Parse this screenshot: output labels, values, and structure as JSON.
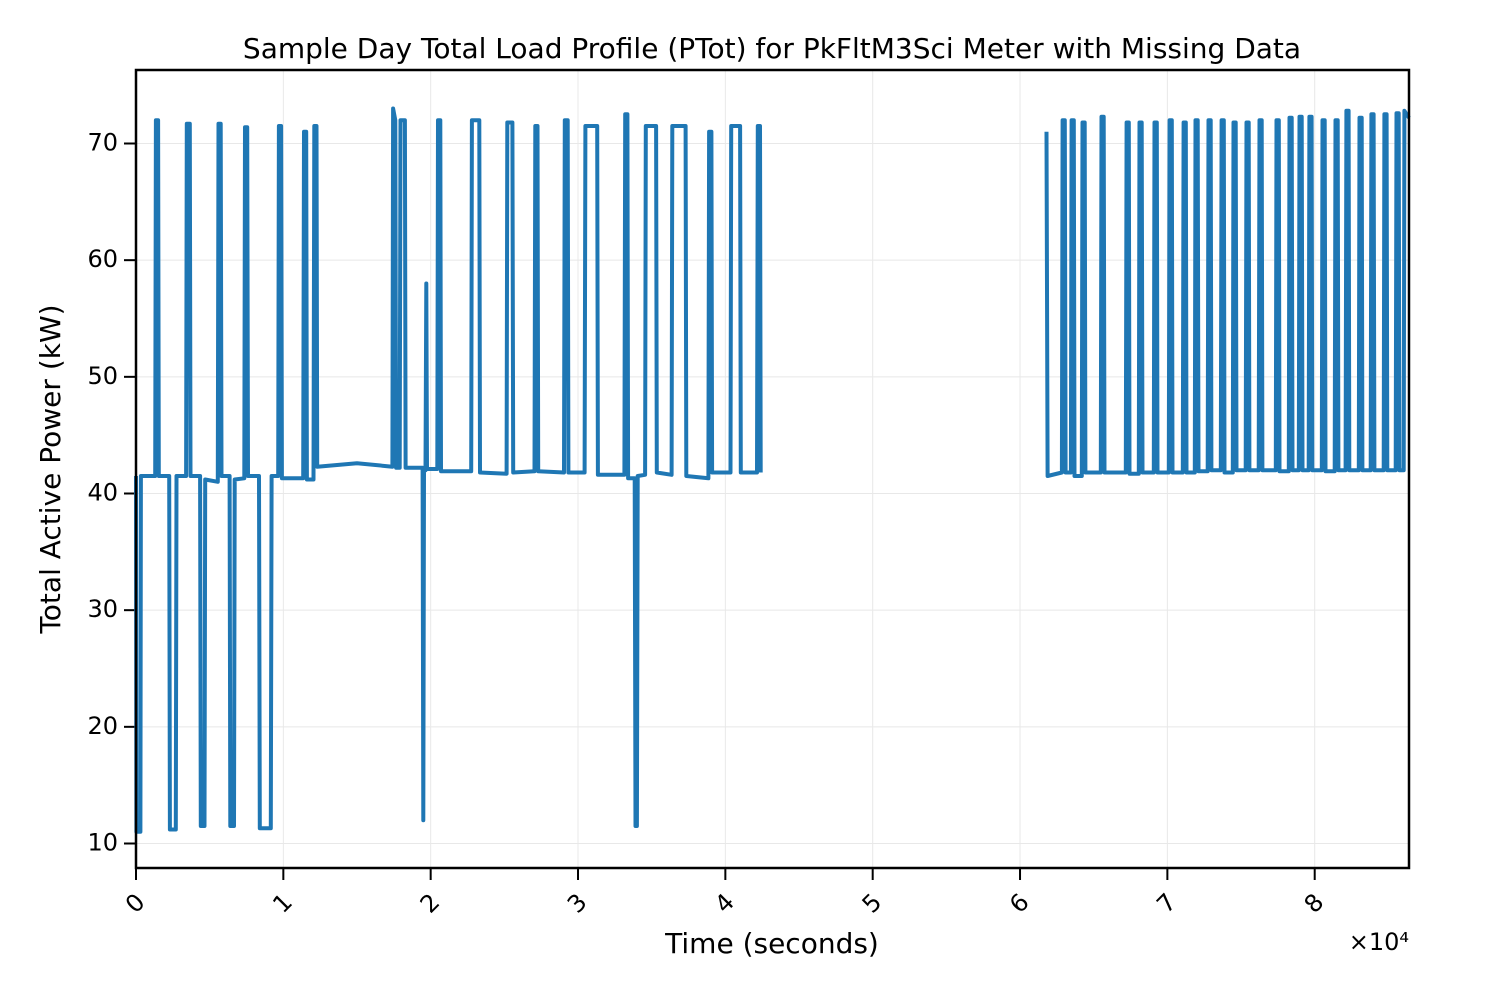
{
  "chart_data": {
    "type": "line",
    "title": "Sample Day Total Load Profile (PTot) for PkFltM3Sci Meter with Missing Data",
    "x_label": "Time (seconds)",
    "y_label": "Total Active Power (kW)",
    "x_offset_label": "×10⁴",
    "xlim": [
      0,
      86400
    ],
    "ylim": [
      7.9,
      76.3
    ],
    "xticks": [
      {
        "value": 0,
        "label": "0"
      },
      {
        "value": 10000,
        "label": "1"
      },
      {
        "value": 20000,
        "label": "2"
      },
      {
        "value": 30000,
        "label": "3"
      },
      {
        "value": 40000,
        "label": "4"
      },
      {
        "value": 50000,
        "label": "5"
      },
      {
        "value": 60000,
        "label": "6"
      },
      {
        "value": 70000,
        "label": "7"
      },
      {
        "value": 80000,
        "label": "8"
      }
    ],
    "yticks": [
      10,
      20,
      30,
      40,
      50,
      60,
      70
    ],
    "grid": true,
    "series": [
      {
        "name": "PTot",
        "color": "#1f77b4",
        "x": [
          0,
          30,
          300,
          330,
          1300,
          1350,
          1500,
          1550,
          2250,
          2300,
          2700,
          2750,
          3400,
          3450,
          3650,
          3700,
          4350,
          4400,
          4650,
          4700,
          5550,
          5600,
          5750,
          5800,
          6350,
          6400,
          6650,
          6700,
          7350,
          7400,
          7550,
          7600,
          8350,
          8400,
          9150,
          9200,
          9650,
          9700,
          9850,
          9900,
          11350,
          11400,
          11550,
          11600,
          12050,
          12100,
          12250,
          12300,
          15000,
          17400,
          17450,
          17600,
          17650,
          17900,
          17950,
          18250,
          18300,
          19450,
          19500,
          19550,
          19650,
          19700,
          19750,
          20450,
          20500,
          20650,
          20700,
          22750,
          22800,
          23300,
          23350,
          25150,
          25200,
          25550,
          25600,
          27050,
          27100,
          27250,
          27300,
          29050,
          29100,
          29300,
          29350,
          30450,
          30500,
          31300,
          31350,
          33150,
          33200,
          33350,
          33400,
          33850,
          33900,
          34000,
          34050,
          34550,
          34600,
          35300,
          35350,
          36350,
          36400,
          37300,
          37350,
          38850,
          38900,
          39050,
          39100,
          40350,
          40400,
          41000,
          41050,
          42150,
          42200,
          42350,
          42400,
          52000,
          61800,
          61870,
          62840,
          62890,
          63040,
          63090,
          63450,
          63500,
          63650,
          63700,
          64190,
          64240,
          64390,
          64440,
          65480,
          65530,
          65680,
          65730,
          67180,
          67230,
          67380,
          67430,
          68060,
          68110,
          68260,
          68310,
          69080,
          69130,
          69280,
          69330,
          70100,
          70150,
          70300,
          70350,
          71050,
          71100,
          71250,
          71300,
          71860,
          71910,
          72060,
          72110,
          72740,
          72790,
          72940,
          72990,
          73630,
          73680,
          73830,
          73880,
          74440,
          74490,
          74640,
          74690,
          75320,
          75370,
          75520,
          75570,
          76200,
          76250,
          76400,
          76450,
          77360,
          77410,
          77560,
          77610,
          78240,
          78290,
          78440,
          78490,
          78920,
          78970,
          79120,
          79170,
          79590,
          79640,
          79790,
          79840,
          80480,
          80530,
          80680,
          80730,
          81360,
          81410,
          81560,
          81610,
          82100,
          82150,
          82300,
          82350,
          82990,
          83040,
          83190,
          83240,
          83800,
          83850,
          84000,
          84050,
          84680,
          84730,
          84880,
          84930,
          85500,
          85550,
          85700,
          85750,
          86040,
          86090,
          86400
        ],
        "values": [
          41.5,
          11,
          11,
          41.5,
          41.5,
          72,
          72,
          41.5,
          41.5,
          11.2,
          11.2,
          41.5,
          41.5,
          71.7,
          71.7,
          41.5,
          41.5,
          11.5,
          11.5,
          41.2,
          41,
          71.7,
          71.7,
          41.5,
          41.5,
          11.5,
          11.5,
          41.2,
          41.3,
          71.4,
          71.4,
          41.5,
          41.5,
          11.3,
          11.3,
          41.5,
          41.5,
          71.5,
          71.5,
          41.3,
          41.3,
          71,
          71,
          41.2,
          41.2,
          71.5,
          71.5,
          42.3,
          42.6,
          42.3,
          73,
          72,
          42.2,
          42.2,
          72,
          72,
          42.2,
          42.2,
          12,
          42,
          42,
          58,
          42.1,
          42.1,
          72,
          72,
          41.9,
          41.9,
          72,
          72,
          41.8,
          41.7,
          71.8,
          71.8,
          41.8,
          41.9,
          71.5,
          71.5,
          41.9,
          41.8,
          72,
          72,
          41.8,
          41.8,
          71.5,
          71.5,
          41.6,
          41.6,
          72.5,
          72.5,
          41.3,
          41.3,
          11.5,
          11.5,
          41.5,
          41.6,
          71.5,
          71.5,
          41.8,
          41.6,
          71.5,
          71.5,
          41.5,
          41.3,
          71,
          71,
          41.8,
          41.8,
          71.5,
          71.5,
          41.8,
          41.8,
          71.5,
          71.5,
          41.8,
          null,
          71,
          41.5,
          41.8,
          72,
          72,
          41.8,
          41.8,
          72,
          72,
          41.5,
          41.5,
          71.8,
          71.8,
          41.8,
          41.8,
          72.3,
          72.3,
          41.8,
          41.8,
          71.8,
          71.8,
          41.7,
          41.7,
          71.8,
          71.8,
          41.8,
          41.8,
          71.8,
          71.8,
          41.8,
          41.8,
          72,
          72,
          41.8,
          41.8,
          71.8,
          71.8,
          41.8,
          41.8,
          72,
          72,
          41.9,
          41.9,
          72,
          72,
          42,
          42,
          72,
          72,
          41.8,
          41.8,
          71.8,
          71.8,
          42,
          42,
          71.8,
          71.8,
          42,
          42,
          72,
          72,
          42,
          42,
          72,
          72,
          41.9,
          41.9,
          72.2,
          72.2,
          42,
          42,
          72.3,
          72.3,
          42,
          42,
          72.3,
          72.3,
          42,
          42,
          72,
          72,
          41.9,
          41.9,
          72,
          72,
          42,
          42,
          72.8,
          72.8,
          42,
          42,
          72.2,
          72.2,
          42,
          42,
          72.5,
          72.5,
          42,
          42,
          72.5,
          72.5,
          42,
          42,
          72.6,
          72.6,
          42,
          42,
          72.8,
          72.2
        ]
      }
    ]
  }
}
